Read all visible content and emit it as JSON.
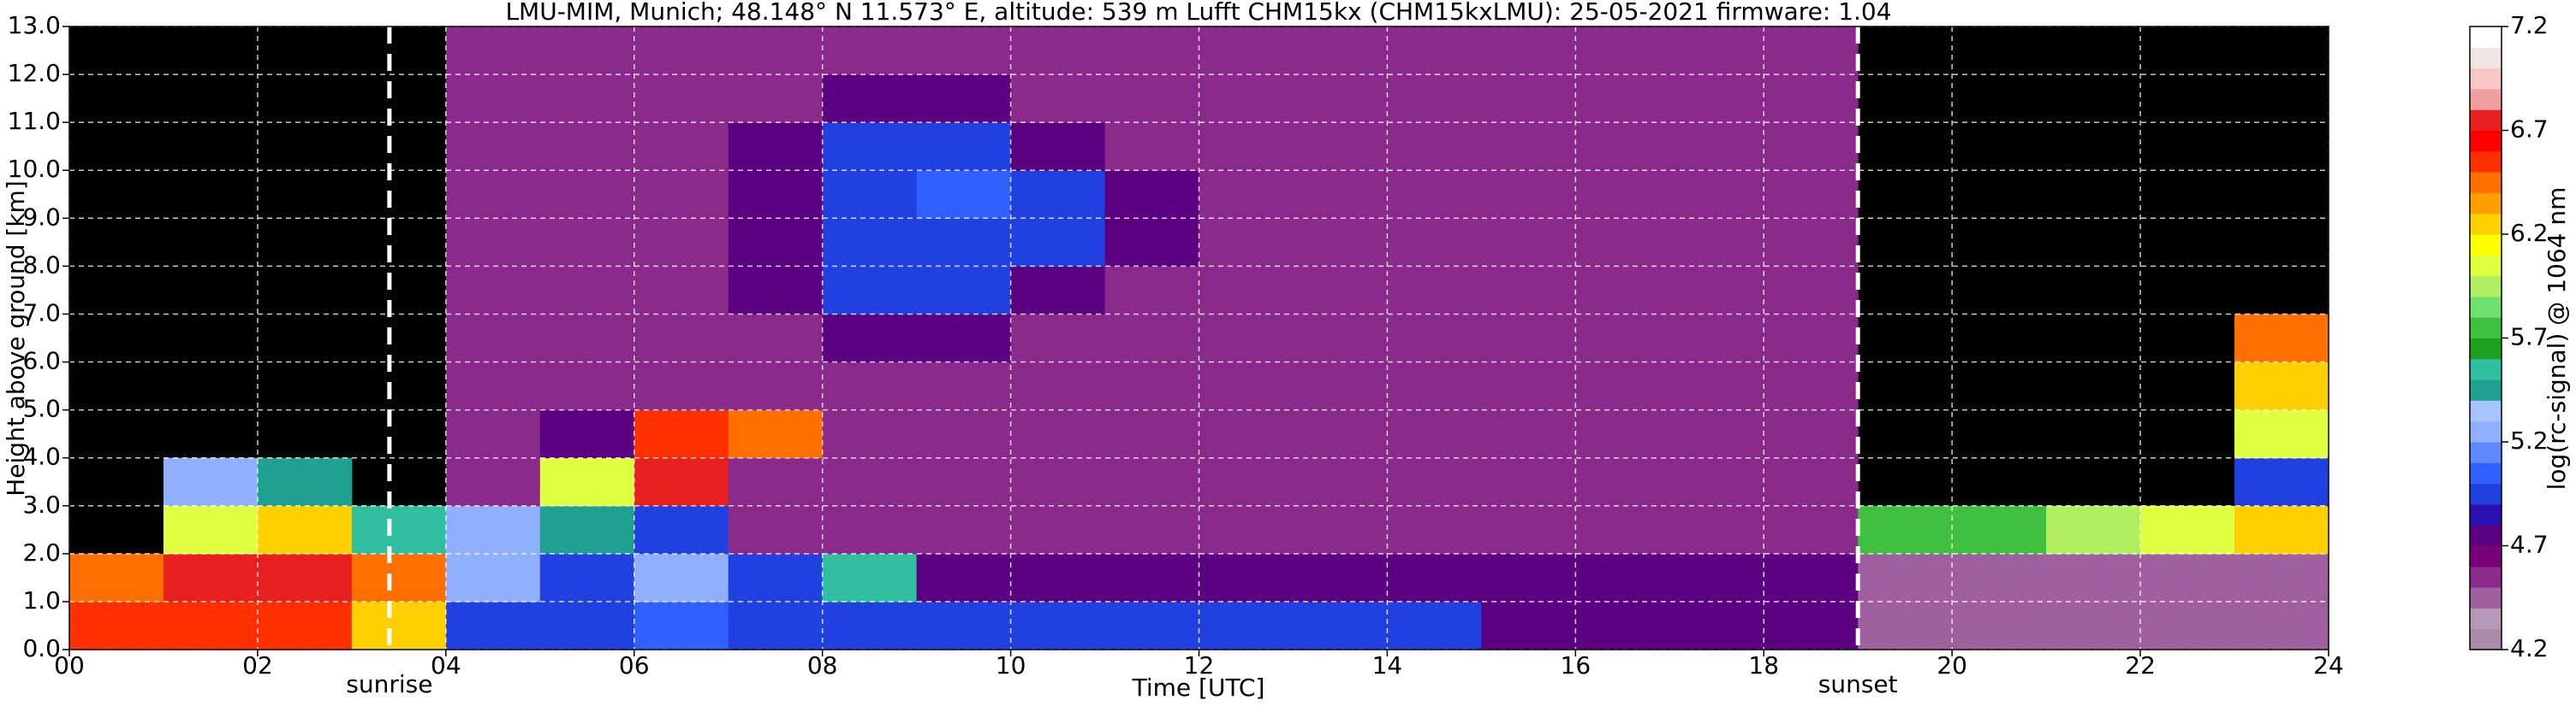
{
  "chart_data": {
    "type": "heatmap",
    "title": "LMU-MIM, Munich; 48.148° N 11.573° E, altitude: 539 m    Lufft CHM15kx (CHM15kxLMU): 25-05-2021    firmware: 1.04",
    "x_label": "Time [UTC]",
    "y_label": "Height above ground [km]",
    "colorbar_label": "log(rc-signal) @ 1064 nm",
    "xlim": [
      0,
      24
    ],
    "ylim": [
      0,
      13
    ],
    "clim": [
      4.2,
      7.2
    ],
    "grid": true,
    "xticks": [
      {
        "value": 0,
        "label": "00"
      },
      {
        "value": 2,
        "label": "02"
      },
      {
        "value": 4,
        "label": "04"
      },
      {
        "value": 6,
        "label": "06"
      },
      {
        "value": 8,
        "label": "08"
      },
      10,
      12,
      14,
      16,
      18,
      20,
      22,
      24
    ],
    "yticks": [
      {
        "value": 0,
        "label": "0.0"
      },
      {
        "value": 1,
        "label": "1.0"
      },
      {
        "value": 2,
        "label": "2.0"
      },
      {
        "value": 3,
        "label": "3.0"
      },
      {
        "value": 4,
        "label": "4.0"
      },
      {
        "value": 5,
        "label": "5.0"
      },
      {
        "value": 6,
        "label": "6.0"
      },
      {
        "value": 7,
        "label": "7.0"
      },
      {
        "value": 8,
        "label": "8.0"
      },
      {
        "value": 9,
        "label": "9.0"
      },
      {
        "value": 10,
        "label": "10.0"
      },
      {
        "value": 11,
        "label": "11.0"
      },
      {
        "value": 12,
        "label": "12.0"
      },
      {
        "value": 13,
        "label": "13.0"
      }
    ],
    "cticks": [
      4.2,
      4.7,
      5.2,
      5.7,
      6.2,
      6.7,
      7.2
    ],
    "colormap": [
      "#a98aa9",
      "#b699b6",
      "#a060a0",
      "#8a2a8a",
      "#780078",
      "#5a0080",
      "#2a10b0",
      "#2040e0",
      "#3060ff",
      "#6088ff",
      "#90b0ff",
      "#a8c4ff",
      "#20a090",
      "#30c0a0",
      "#20a020",
      "#40c040",
      "#70e070",
      "#b0f060",
      "#e0ff40",
      "#ffff00",
      "#ffd000",
      "#ffa000",
      "#ff7000",
      "#ff3000",
      "#ff0000",
      "#e82020",
      "#f0a0a0",
      "#f8c8c8",
      "#f0e4e4",
      "#ffffff"
    ],
    "xbins": [
      0,
      1,
      2,
      3,
      4,
      5,
      6,
      7,
      8,
      9,
      10,
      11,
      12,
      13,
      14,
      15,
      16,
      17,
      18,
      19,
      20,
      21,
      22,
      23,
      24
    ],
    "ybins": [
      0,
      1,
      2,
      3,
      4,
      5,
      6,
      7,
      8,
      9,
      10,
      11,
      12,
      13
    ],
    "z": [
      [
        6.5,
        6.5,
        6.6,
        6.2,
        5.0,
        5.0,
        5.1,
        5.0,
        4.9,
        4.9,
        4.9,
        4.9,
        4.9,
        4.9,
        4.9,
        4.8,
        4.8,
        4.8,
        4.8,
        4.5,
        4.5,
        4.5,
        4.5,
        4.5
      ],
      [
        6.4,
        6.7,
        6.7,
        6.4,
        5.3,
        5.0,
        5.3,
        4.9,
        5.6,
        4.8,
        4.8,
        4.8,
        4.8,
        4.8,
        4.8,
        4.7,
        4.7,
        4.7,
        4.7,
        4.5,
        4.5,
        4.5,
        4.5,
        4.5
      ],
      [
        null,
        6.0,
        6.2,
        5.6,
        5.2,
        5.4,
        4.9,
        4.6,
        4.6,
        4.6,
        4.6,
        4.6,
        4.6,
        4.6,
        4.6,
        4.6,
        4.6,
        4.6,
        4.6,
        5.8,
        5.8,
        5.9,
        6.1,
        6.2
      ],
      [
        null,
        5.2,
        5.4,
        null,
        4.6,
        6.0,
        6.7,
        4.6,
        4.6,
        4.6,
        4.6,
        4.6,
        4.6,
        4.6,
        4.6,
        4.6,
        4.6,
        4.6,
        4.6,
        null,
        null,
        null,
        null,
        4.9
      ],
      [
        null,
        null,
        null,
        null,
        4.6,
        4.8,
        6.6,
        6.4,
        4.6,
        4.6,
        4.6,
        4.6,
        4.6,
        4.6,
        4.6,
        4.6,
        4.6,
        4.6,
        4.6,
        null,
        null,
        null,
        null,
        6.1
      ],
      [
        null,
        null,
        null,
        null,
        4.6,
        4.6,
        4.6,
        4.6,
        4.6,
        4.6,
        4.6,
        4.6,
        4.6,
        4.6,
        4.6,
        4.6,
        4.6,
        4.6,
        4.6,
        null,
        null,
        null,
        null,
        6.3
      ],
      [
        null,
        null,
        null,
        null,
        4.6,
        4.6,
        4.6,
        4.6,
        4.7,
        4.7,
        4.6,
        4.6,
        4.6,
        4.6,
        4.6,
        4.6,
        4.6,
        4.6,
        4.6,
        null,
        null,
        null,
        null,
        6.4
      ],
      [
        null,
        null,
        null,
        null,
        4.6,
        4.6,
        4.6,
        4.8,
        5.0,
        5.0,
        4.8,
        4.6,
        4.6,
        4.6,
        4.6,
        4.6,
        4.6,
        4.6,
        4.6,
        null,
        null,
        null,
        null,
        null
      ],
      [
        null,
        null,
        null,
        null,
        4.6,
        4.6,
        4.6,
        4.8,
        5.0,
        5.0,
        5.0,
        4.7,
        4.6,
        4.6,
        4.6,
        4.6,
        4.6,
        4.6,
        4.6,
        null,
        null,
        null,
        null,
        null
      ],
      [
        null,
        null,
        null,
        null,
        4.6,
        4.6,
        4.6,
        4.8,
        5.0,
        5.1,
        5.0,
        4.7,
        4.6,
        4.6,
        4.6,
        4.6,
        4.6,
        4.6,
        4.6,
        null,
        null,
        null,
        null,
        null
      ],
      [
        null,
        null,
        null,
        null,
        4.6,
        4.6,
        4.6,
        4.7,
        5.0,
        5.0,
        4.8,
        4.6,
        4.6,
        4.6,
        4.6,
        4.6,
        4.6,
        4.6,
        4.6,
        null,
        null,
        null,
        null,
        null
      ],
      [
        null,
        null,
        null,
        null,
        4.6,
        4.6,
        4.6,
        4.6,
        4.7,
        4.7,
        4.6,
        4.6,
        4.6,
        4.6,
        4.6,
        4.6,
        4.6,
        4.6,
        4.6,
        null,
        null,
        null,
        null,
        null
      ],
      [
        null,
        null,
        null,
        null,
        4.6,
        4.6,
        4.6,
        4.6,
        4.6,
        4.6,
        4.6,
        4.6,
        4.6,
        4.6,
        4.6,
        4.6,
        4.6,
        4.6,
        4.6,
        null,
        null,
        null,
        null,
        null
      ]
    ],
    "annotations": [
      {
        "label": "sunrise",
        "x": 3.4
      },
      {
        "label": "sunset",
        "x": 19.0
      }
    ]
  }
}
